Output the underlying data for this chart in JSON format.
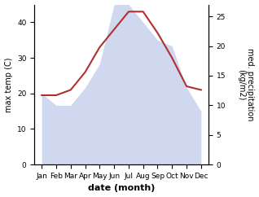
{
  "months": [
    "Jan",
    "Feb",
    "Mar",
    "Apr",
    "May",
    "Jun",
    "Jul",
    "Aug",
    "Sep",
    "Oct",
    "Nov",
    "Dec"
  ],
  "max_temp": [
    19.5,
    19.5,
    21,
    26,
    33,
    38,
    43,
    43,
    37,
    30,
    22,
    21
  ],
  "precipitation": [
    12,
    10,
    10,
    13,
    17,
    27,
    27,
    24,
    21,
    20,
    13,
    9
  ],
  "temp_color": "#b03030",
  "precip_fill_color": "#b8c4e8",
  "precip_fill_alpha": 0.65,
  "ylabel_left": "max temp (C)",
  "ylabel_right": "med. precipitation\n(kg/m2)",
  "xlabel": "date (month)",
  "ylim_left": [
    0,
    45
  ],
  "ylim_right": [
    0,
    27
  ],
  "yticks_left": [
    0,
    10,
    20,
    30,
    40
  ],
  "yticks_right": [
    0,
    5,
    10,
    15,
    20,
    25
  ],
  "label_fontsize": 7,
  "tick_fontsize": 6.5,
  "xlabel_fontsize": 8
}
